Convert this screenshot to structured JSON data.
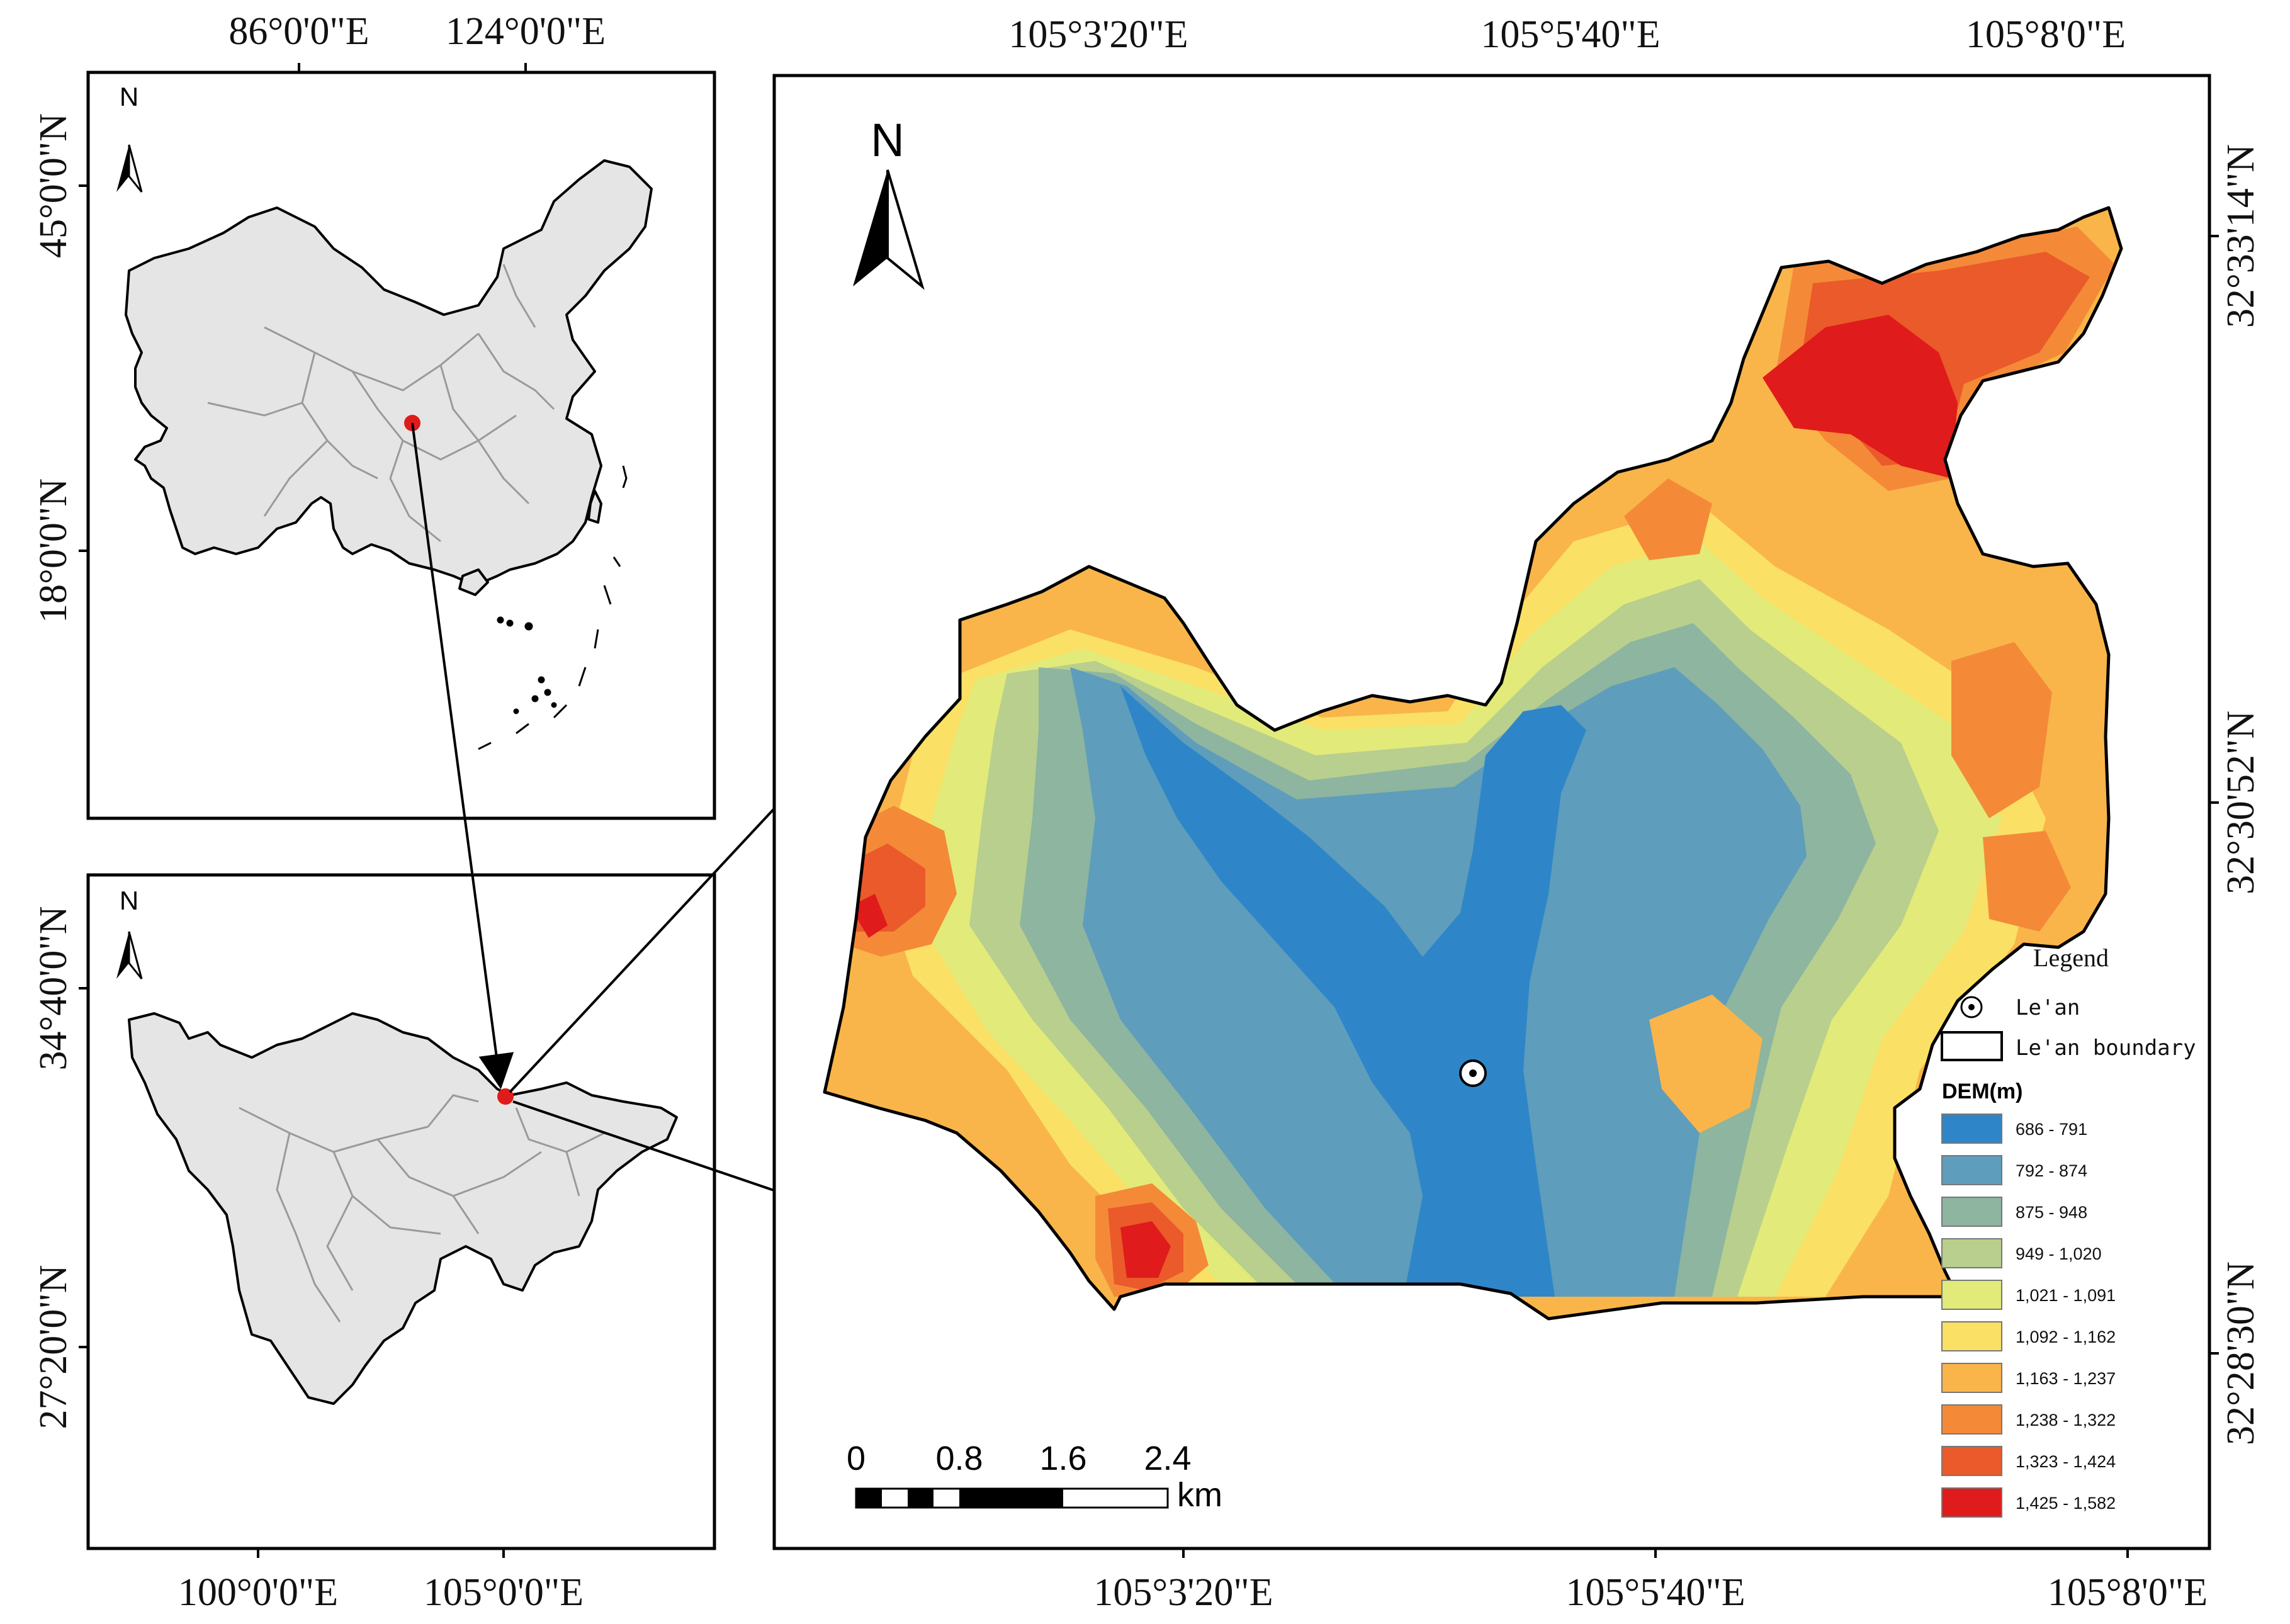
{
  "china_panel": {
    "top_ticks": [
      "86°0'0\"E",
      "124°0'0\"E"
    ],
    "left_ticks": [
      "45°0'0\"N",
      "18°0'0\"N"
    ],
    "north_label": "N"
  },
  "sichuan_panel": {
    "bottom_ticks": [
      "100°0'0\"E",
      "105°0'0\"E"
    ],
    "left_ticks": [
      "34°40'0\"N",
      "27°20'0\"N"
    ],
    "north_label": "N"
  },
  "main_panel": {
    "top_ticks": [
      "105°3'20\"E",
      "105°5'40\"E",
      "105°8'0\"E"
    ],
    "bottom_ticks": [
      "105°3'20\"E",
      "105°5'40\"E",
      "105°8'0\"E"
    ],
    "right_ticks": [
      "32°33'14\"N",
      "32°30'52\"N",
      "32°28'30\"N"
    ],
    "north_label": "N",
    "scale_bar": {
      "labels": [
        "0",
        "0.8",
        "1.6",
        "2.4"
      ],
      "unit": "km"
    },
    "legend": {
      "title": "Legend",
      "point_label": "Le'an",
      "boundary_label": "Le'an boundary",
      "dem_title": "DEM(m)",
      "classes": [
        {
          "label": "686 - 791",
          "color": "#2e86c9"
        },
        {
          "label": "792 - 874",
          "color": "#5e9dbb"
        },
        {
          "label": "875 - 948",
          "color": "#8db5a0"
        },
        {
          "label": "949 - 1,020",
          "color": "#b9cf8d"
        },
        {
          "label": "1,021 - 1,091",
          "color": "#e2ea7a"
        },
        {
          "label": "1,092 - 1,162",
          "color": "#fbe066"
        },
        {
          "label": "1,163 - 1,237",
          "color": "#f9b54a"
        },
        {
          "label": "1,238 - 1,322",
          "color": "#f48a38"
        },
        {
          "label": "1,323 - 1,424",
          "color": "#ea5a2a"
        },
        {
          "label": "1,425 - 1,582",
          "color": "#e01b1b"
        }
      ]
    }
  }
}
